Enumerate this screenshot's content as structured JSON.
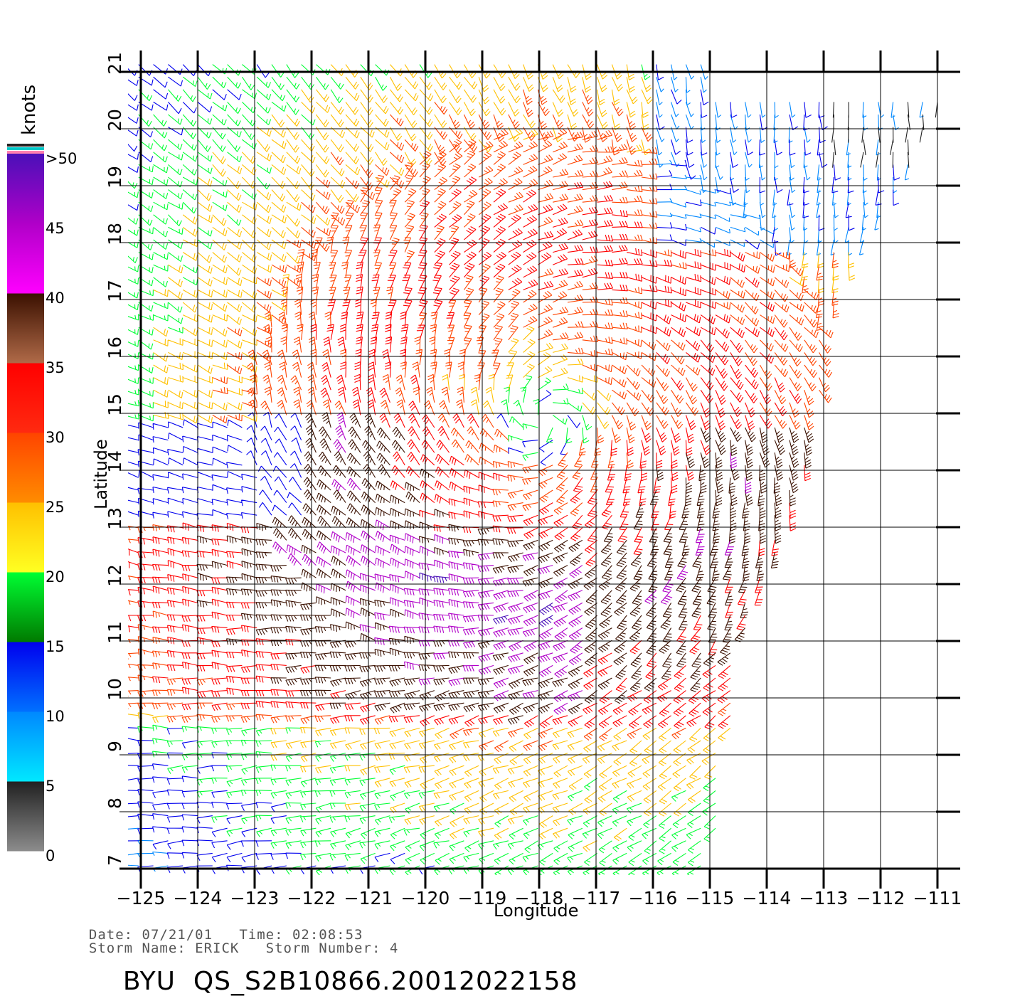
{
  "header": {
    "date_line": "Date: 07/21/01   Time: 02:08:53",
    "storm_line": "Storm Name: ERICK   Storm Number: 4",
    "product_id": "BYU  QS_S2B10866.20012022158"
  },
  "axes": {
    "x_title": "Longitude",
    "y_title": "Latitude",
    "lon_ticks": [
      "−125",
      "−124",
      "−123",
      "−122",
      "−121",
      "−120",
      "−119",
      "−118",
      "−117",
      "−116",
      "−115",
      "−114",
      "−113",
      "−112",
      "−111"
    ],
    "lat_ticks": [
      "7",
      "8",
      "9",
      "10",
      "11",
      "12",
      "13",
      "14",
      "15",
      "16",
      "17",
      "18",
      "19",
      "20",
      "21"
    ],
    "lon_range": [
      -125,
      -111
    ],
    "lat_range": [
      7,
      21
    ],
    "grid": true
  },
  "legend": {
    "units": "knots",
    "labels": [
      ">50",
      "45",
      "40",
      "35",
      "30",
      "25",
      "20",
      "15",
      "10",
      "5",
      "0"
    ],
    "bands": [
      {
        "min": 0,
        "max": 5,
        "from": "#8c8c8c",
        "to": "#202020"
      },
      {
        "min": 5,
        "max": 10,
        "from": "#00e8ff",
        "to": "#0088ff"
      },
      {
        "min": 10,
        "max": 15,
        "from": "#0070ff",
        "to": "#0000ee"
      },
      {
        "min": 15,
        "max": 20,
        "from": "#007a00",
        "to": "#00ff33"
      },
      {
        "min": 20,
        "max": 25,
        "from": "#ffff22",
        "to": "#ffc000"
      },
      {
        "min": 25,
        "max": 30,
        "from": "#ff8c00",
        "to": "#ff4400"
      },
      {
        "min": 30,
        "max": 35,
        "from": "#ff2a10",
        "to": "#ff0000"
      },
      {
        "min": 35,
        "max": 40,
        "from": "#b06a48",
        "to": "#3a1000"
      },
      {
        "min": 40,
        "max": 45,
        "from": "#ff00ff",
        "to": "#b000c8"
      },
      {
        "min": 45,
        "max": 50,
        "from": "#b000c8",
        "to": "#4a10b8"
      }
    ],
    "cap_colors": [
      "#ff80b0",
      "#00c8c8",
      "#222222"
    ]
  },
  "storm_center": {
    "lon": -117.9,
    "lat": 14.9
  },
  "swath_east_edge": [
    [
      -110.9,
      20.5
    ],
    [
      -112.8,
      17.0
    ],
    [
      -113.2,
      14.5
    ],
    [
      -113.6,
      13.0
    ],
    [
      -114.4,
      11.0
    ],
    [
      -115.0,
      7.0
    ]
  ]
}
